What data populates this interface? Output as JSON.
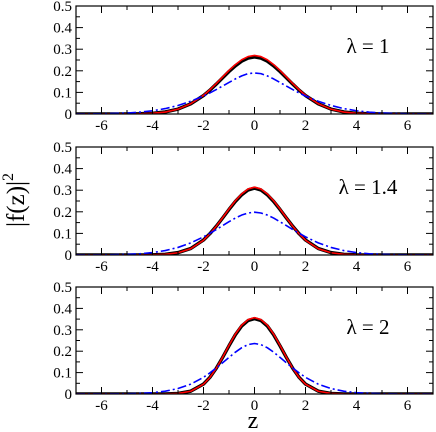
{
  "chart_data": {
    "type": "line",
    "xlabel": "z",
    "ylabel": "|f(z)|",
    "ylabel_superscript": "2",
    "xlim": [
      -7,
      7
    ],
    "ylim": [
      0,
      0.5
    ],
    "x_ticks": [
      -6,
      -4,
      -2,
      0,
      2,
      4,
      6
    ],
    "x_tick_labels": [
      "-6",
      "-4",
      "-2",
      "0",
      "2",
      "4",
      "6"
    ],
    "y_ticks": [
      0,
      0.1,
      0.2,
      0.3,
      0.4,
      0.5
    ],
    "y_tick_labels": [
      "0",
      "0.1",
      "0.2",
      "0.3",
      "0.4",
      "0.5"
    ],
    "grid": false,
    "series_colors": [
      "#000000",
      "#ff0000",
      "#0000ff"
    ],
    "series_styles": [
      "solid",
      "solid",
      "dash-dot"
    ],
    "x": [
      -7,
      -6.5,
      -6,
      -5.5,
      -5,
      -4.5,
      -4,
      -3.5,
      -3,
      -2.5,
      -2,
      -1.75,
      -1.5,
      -1.25,
      -1,
      -0.75,
      -0.5,
      -0.25,
      0,
      0.25,
      0.5,
      0.75,
      1,
      1.25,
      1.5,
      1.75,
      2,
      2.5,
      3,
      3.5,
      4,
      4.5,
      5,
      5.5,
      6,
      6.5,
      7
    ],
    "panels": [
      {
        "label": "λ = 1",
        "series": [
          {
            "values": [
              0.0,
              0.0,
              0.0,
              0.0001,
              0.0003,
              0.0011,
              0.0034,
              0.0094,
              0.0227,
              0.0474,
              0.0855,
              0.1102,
              0.1381,
              0.1677,
              0.1968,
              0.223,
              0.2447,
              0.2589,
              0.264,
              0.2589,
              0.2447,
              0.223,
              0.1968,
              0.1677,
              0.1381,
              0.1102,
              0.0855,
              0.0474,
              0.0227,
              0.0094,
              0.0034,
              0.0011,
              0.0003,
              0.0001,
              0.0,
              0.0,
              0.0
            ]
          },
          {
            "values": [
              0.0,
              0.0,
              0.0,
              0.0001,
              0.0003,
              0.001,
              0.0032,
              0.009,
              0.0223,
              0.0474,
              0.0864,
              0.1122,
              0.141,
              0.1716,
              0.2017,
              0.2288,
              0.2512,
              0.266,
              0.271,
              0.266,
              0.2512,
              0.2288,
              0.2017,
              0.1716,
              0.141,
              0.1122,
              0.0864,
              0.0474,
              0.0223,
              0.009,
              0.0032,
              0.001,
              0.0003,
              0.0001,
              0.0,
              0.0,
              0.0
            ]
          },
          {
            "values": [
              0.0003,
              0.0006,
              0.0012,
              0.0024,
              0.0046,
              0.0085,
              0.015,
              0.025,
              0.0395,
              0.059,
              0.083,
              0.0975,
              0.113,
              0.1295,
              0.146,
              0.1625,
              0.1765,
              0.187,
              0.19,
              0.187,
              0.1765,
              0.1625,
              0.146,
              0.1295,
              0.113,
              0.0975,
              0.083,
              0.059,
              0.0395,
              0.025,
              0.015,
              0.0085,
              0.0046,
              0.0024,
              0.0012,
              0.0006,
              0.0003
            ]
          }
        ]
      },
      {
        "label": "λ = 1.4",
        "series": [
          {
            "values": [
              0.0,
              0.0,
              0.0,
              0.0,
              0.0,
              0.0002,
              0.0009,
              0.0034,
              0.011,
              0.0302,
              0.0694,
              0.0985,
              0.133,
              0.1712,
              0.2108,
              0.2479,
              0.279,
              0.3012,
              0.3094,
              0.3012,
              0.279,
              0.2479,
              0.2108,
              0.1712,
              0.133,
              0.0985,
              0.0694,
              0.0302,
              0.011,
              0.0034,
              0.0009,
              0.0002,
              0.0,
              0.0,
              0.0,
              0.0,
              0.0
            ]
          },
          {
            "values": [
              0.0,
              0.0,
              0.0,
              0.0,
              0.0,
              0.0002,
              0.0008,
              0.0031,
              0.0104,
              0.0292,
              0.0684,
              0.098,
              0.1332,
              0.1724,
              0.213,
              0.2511,
              0.283,
              0.3058,
              0.314,
              0.3058,
              0.283,
              0.2511,
              0.213,
              0.1724,
              0.1332,
              0.098,
              0.0684,
              0.0292,
              0.0104,
              0.0031,
              0.0008,
              0.0002,
              0.0,
              0.0,
              0.0,
              0.0,
              0.0
            ]
          },
          {
            "values": [
              0.0001,
              0.0003,
              0.0006,
              0.0013,
              0.0029,
              0.0058,
              0.0112,
              0.0205,
              0.035,
              0.056,
              0.084,
              0.1005,
              0.118,
              0.136,
              0.154,
              0.171,
              0.185,
              0.1945,
              0.198,
              0.1945,
              0.185,
              0.171,
              0.154,
              0.136,
              0.118,
              0.1005,
              0.084,
              0.056,
              0.035,
              0.0205,
              0.0112,
              0.0058,
              0.0029,
              0.0013,
              0.0006,
              0.0003,
              0.0001
            ]
          }
        ]
      },
      {
        "label": "λ = 2",
        "series": [
          {
            "values": [
              0.0,
              0.0,
              0.0,
              0.0,
              0.0,
              0.0,
              0.0,
              0.0004,
              0.0028,
              0.0133,
              0.0464,
              0.0777,
              0.12,
              0.1709,
              0.2253,
              0.2767,
              0.3181,
              0.3434,
              0.352,
              0.3434,
              0.3181,
              0.2767,
              0.2253,
              0.1709,
              0.12,
              0.0777,
              0.0464,
              0.0133,
              0.0028,
              0.0004,
              0.0,
              0.0,
              0.0,
              0.0,
              0.0,
              0.0,
              0.0
            ]
          },
          {
            "values": [
              0.0,
              0.0,
              0.0,
              0.0,
              0.0,
              0.0,
              0.0,
              0.0004,
              0.0026,
              0.0128,
              0.0457,
              0.0771,
              0.1199,
              0.1717,
              0.2272,
              0.2797,
              0.322,
              0.3479,
              0.3567,
              0.3479,
              0.322,
              0.2797,
              0.2272,
              0.1717,
              0.1199,
              0.0771,
              0.0457,
              0.0128,
              0.0026,
              0.0004,
              0.0,
              0.0,
              0.0,
              0.0,
              0.0,
              0.0,
              0.0
            ]
          },
          {
            "values": [
              0.0,
              0.0001,
              0.0002,
              0.0005,
              0.0012,
              0.0028,
              0.0062,
              0.013,
              0.0255,
              0.046,
              0.078,
              0.0985,
              0.1215,
              0.146,
              0.171,
              0.1955,
              0.2165,
              0.231,
              0.236,
              0.231,
              0.2165,
              0.1955,
              0.171,
              0.146,
              0.1215,
              0.0985,
              0.078,
              0.046,
              0.0255,
              0.013,
              0.0062,
              0.0028,
              0.0012,
              0.0005,
              0.0002,
              0.0001,
              0.0
            ]
          }
        ]
      }
    ]
  }
}
